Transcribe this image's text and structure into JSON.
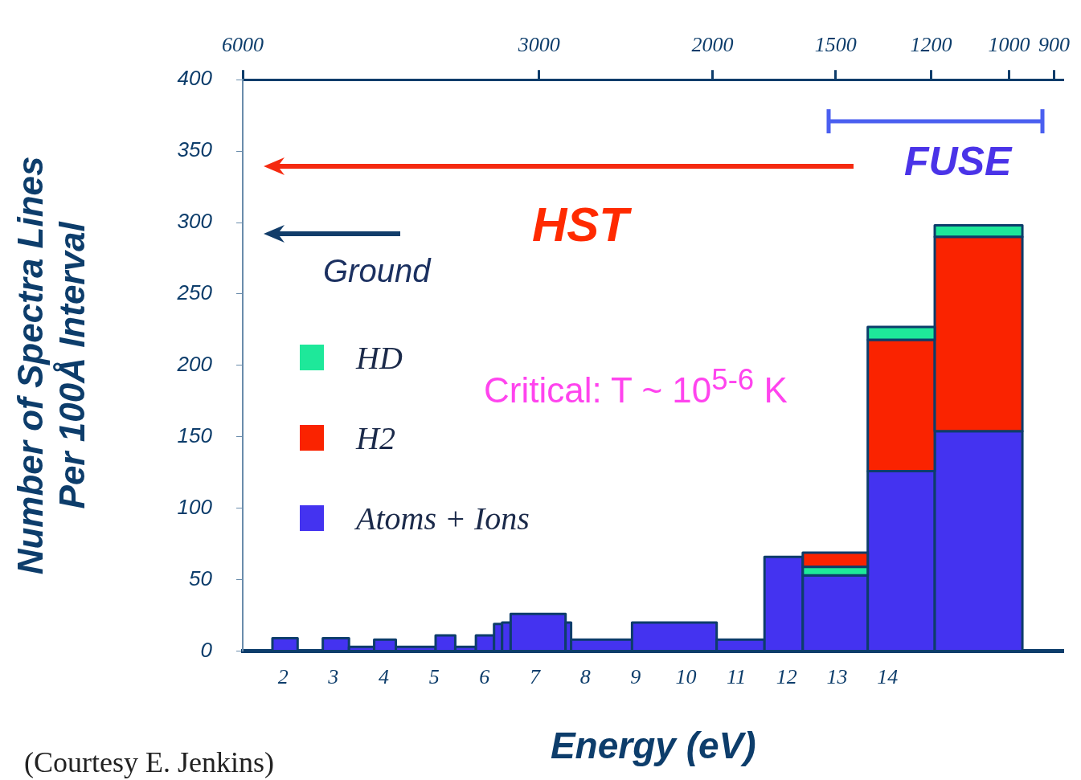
{
  "chart_data": {
    "type": "histogram",
    "xlabel": "Energy (eV)",
    "ylabel": "Number of Spectra Lines\nPer 100Å Interval",
    "bins": [
      1.79,
      2.29,
      2.79,
      3.31,
      3.81,
      4.24,
      5.03,
      5.42,
      5.83,
      6.19,
      6.35,
      6.52,
      7.61,
      7.72,
      8.93,
      10.61,
      11.56,
      12.32,
      13.61,
      14.94,
      16.68
    ],
    "series": [
      {
        "name": "Atoms + Ions",
        "color": "#4433f0",
        "values": [
          9,
          null,
          9,
          3,
          8,
          3,
          11,
          3,
          11,
          19,
          20,
          26,
          20,
          8,
          20,
          8,
          66,
          53,
          126,
          154
        ]
      },
      {
        "name": "H2",
        "color": "#fa2300",
        "values": [
          null,
          null,
          null,
          null,
          null,
          null,
          null,
          null,
          null,
          null,
          null,
          null,
          null,
          null,
          null,
          null,
          null,
          10,
          92,
          136
        ],
        "base": [
          null,
          null,
          null,
          null,
          null,
          null,
          null,
          null,
          null,
          null,
          null,
          null,
          null,
          null,
          null,
          null,
          null,
          59,
          126,
          154
        ]
      },
      {
        "name": "HD",
        "color": "#1ee89a",
        "values": [
          null,
          null,
          null,
          null,
          null,
          null,
          null,
          null,
          null,
          null,
          null,
          null,
          null,
          null,
          null,
          null,
          null,
          6,
          9,
          8
        ],
        "base": [
          null,
          null,
          null,
          null,
          null,
          null,
          null,
          null,
          null,
          null,
          null,
          null,
          null,
          null,
          null,
          null,
          null,
          53,
          218,
          290
        ]
      }
    ],
    "xlim": [
      1.2,
      17.5
    ],
    "xticks": [
      2,
      3,
      4,
      5,
      6,
      7,
      8,
      9,
      10,
      11,
      12,
      13,
      14
    ],
    "ylim": [
      0,
      400
    ],
    "yticks": [
      0,
      50,
      100,
      150,
      200,
      250,
      300,
      350,
      400
    ],
    "x2lim": [
      6000,
      880
    ],
    "x2ticks": [
      6000,
      3000,
      2000,
      1500,
      1200,
      1000,
      900
    ],
    "log": "x2",
    "grid": false,
    "legend": "left",
    "annotations": [
      "HST",
      "Ground",
      "FUSE",
      "Critical: T ~ 10$^{5-6}$ K",
      "(Courtesy E. Jenkins)"
    ]
  }
}
